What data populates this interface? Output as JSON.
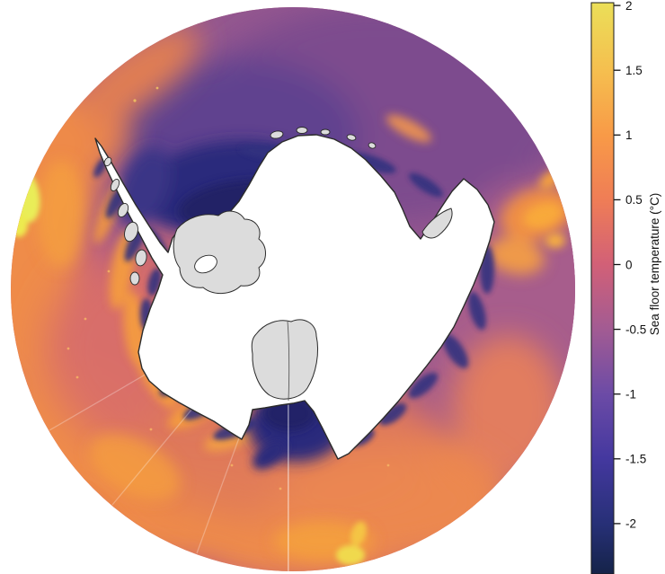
{
  "figure": {
    "kind": "south-polar sea floor temperature map",
    "background": "#ffffff"
  },
  "map": {
    "land_name": "Antarctica",
    "land_fill": "#ffffff",
    "ice_shelf_fill": "#dcdcdc",
    "coast_stroke": "#2b2b2b",
    "ocean_palette": {
      "warm_yellow": "#e9ed58",
      "orange": "#f89a47",
      "salmon": "#ef7d56",
      "rose": "#d26077",
      "mauve": "#a25b93",
      "violet": "#6c4ba6",
      "cold_blue": "#44389f",
      "coldest_navy": "#232366"
    }
  },
  "colorbar": {
    "label": "Sea floor temperature (°C)",
    "max": 2,
    "min": -2,
    "ticks": [
      {
        "value": 2,
        "label": "2"
      },
      {
        "value": 1.5,
        "label": "1.5"
      },
      {
        "value": 1,
        "label": "1"
      },
      {
        "value": 0.5,
        "label": "0.5"
      },
      {
        "value": 0,
        "label": "0"
      },
      {
        "value": -0.5,
        "label": "-0.5"
      },
      {
        "value": -1,
        "label": "-1"
      },
      {
        "value": -1.5,
        "label": "-1.5"
      },
      {
        "value": -2,
        "label": "-2"
      }
    ],
    "gradient": [
      {
        "value": 2.02,
        "color": "#ebdf58"
      },
      {
        "value": 1.5,
        "color": "#f5bf4f"
      },
      {
        "value": 1,
        "color": "#f89a47"
      },
      {
        "value": 0.5,
        "color": "#ef7d56"
      },
      {
        "value": 0,
        "color": "#d26077"
      },
      {
        "value": -0.5,
        "color": "#a25b93"
      },
      {
        "value": -1,
        "color": "#6c4ba6"
      },
      {
        "value": -1.5,
        "color": "#44389f"
      },
      {
        "value": -2,
        "color": "#273077"
      },
      {
        "value": -2.39,
        "color": "#152349"
      }
    ]
  },
  "chart_data": {
    "type": "heatmap",
    "variable": "Sea floor temperature",
    "units": "°C",
    "range": [
      -2,
      2
    ],
    "colorbar_ticks": [
      2,
      1.5,
      1,
      0.5,
      0,
      -0.5,
      -1,
      -1.5,
      -2
    ],
    "legend_position": "right",
    "projection": "south polar stereographic",
    "notes_visible_regions": {
      "warmest_edge": "yellow/orange ring at outer (northern) boundary, brightest on west edge",
      "coldest": "dark navy along Antarctic coast, Weddell Sea and Ross Sea shelves",
      "land": "white continent with gray ice shelves (Ronne-Filchner, Ross, Amery)"
    }
  }
}
